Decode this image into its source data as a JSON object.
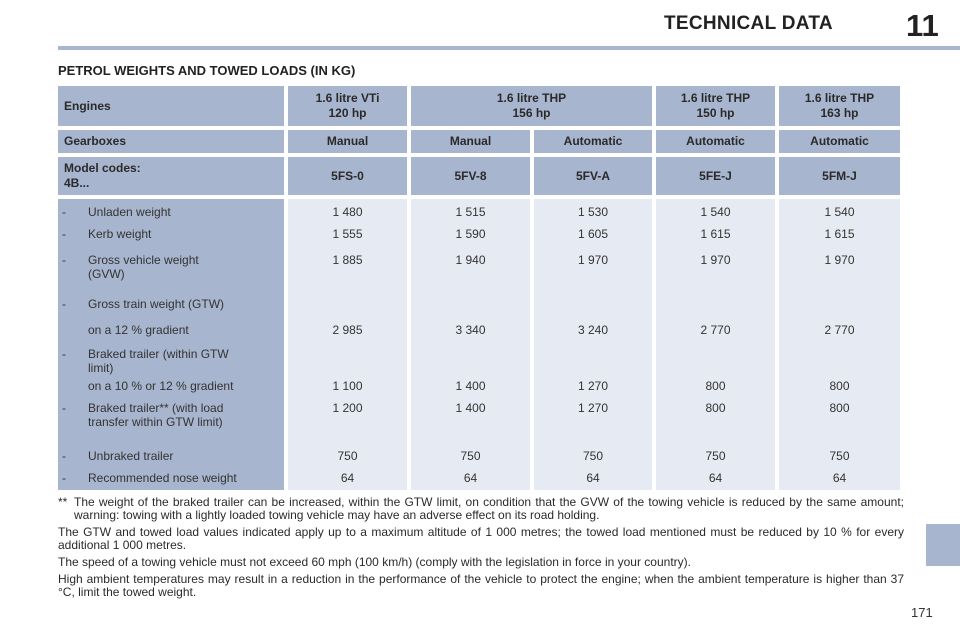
{
  "header": {
    "title": "TECHNICAL DATA",
    "chapter": "11"
  },
  "section_title": "PETROL WEIGHTS AND TOWED LOADS (IN KG)",
  "table": {
    "engines_label": "Engines",
    "engines": [
      "1.6 litre VTi\n120 hp",
      "1.6 litre THP\n156 hp",
      "1.6 litre THP\n150 hp",
      "1.6 litre THP\n163 hp"
    ],
    "gearboxes_label": "Gearboxes",
    "gearboxes": [
      "Manual",
      "Manual",
      "Automatic",
      "Automatic",
      "Automatic"
    ],
    "model_codes_label": "Model codes:\n4B...",
    "model_codes": [
      "5FS-0",
      "5FV-8",
      "5FV-A",
      "5FE-J",
      "5FM-J"
    ],
    "rows": [
      {
        "dash": "-",
        "label": "Unladen weight",
        "values": [
          "1 480",
          "1 515",
          "1 530",
          "1 540",
          "1 540"
        ]
      },
      {
        "dash": "-",
        "label": "Kerb weight",
        "values": [
          "1 555",
          "1 590",
          "1 605",
          "1 615",
          "1 615"
        ]
      },
      {
        "dash": "-",
        "label": "Gross vehicle weight\n(GVW)",
        "values": [
          "1 885",
          "1 940",
          "1 970",
          "1 970",
          "1 970"
        ]
      },
      {
        "dash": "-",
        "label": "Gross train weight (GTW)",
        "values": [
          "",
          "",
          "",
          "",
          ""
        ]
      },
      {
        "dash": "",
        "label": "on a 12 % gradient",
        "values": [
          "2 985",
          "3 340",
          "3 240",
          "2 770",
          "2 770"
        ]
      },
      {
        "dash": "-",
        "label": "Braked trailer (within GTW\nlimit)",
        "values": [
          "",
          "",
          "",
          "",
          ""
        ]
      },
      {
        "dash": "",
        "label": "on a 10 % or 12 % gradient",
        "values": [
          "1 100",
          "1 400",
          "1 270",
          "800",
          "800"
        ]
      },
      {
        "dash": "-",
        "label": "Braked trailer** (with load\ntransfer within GTW limit)",
        "values": [
          "1 200",
          "1 400",
          "1 270",
          "800",
          "800"
        ]
      },
      {
        "dash": "-",
        "label": "Unbraked trailer",
        "values": [
          "750",
          "750",
          "750",
          "750",
          "750"
        ]
      },
      {
        "dash": "-",
        "label": "Recommended nose weight",
        "values": [
          "64",
          "64",
          "64",
          "64",
          "64"
        ]
      }
    ]
  },
  "notes": {
    "footnote_mark": "**",
    "footnote": "The weight of the braked trailer can be increased, within the GTW limit, on condition that the GVW of the towing vehicle is reduced by the same amount; warning: towing with a lightly loaded towing vehicle may have an adverse effect on its road holding.",
    "p1": "The GTW and towed load values indicated apply up to a maximum altitude of 1 000 metres; the towed load mentioned must be reduced by 10 % for every additional 1 000 metres.",
    "p2": "The speed of a towing vehicle must not exceed 60 mph (100 km/h) (comply with the legislation in force in your country).",
    "p3": "High ambient temperatures may result in a reduction in the performance of the vehicle to protect the engine; when the ambient temperature is higher than 37 °C, limit the towed weight."
  },
  "page_number": "171"
}
